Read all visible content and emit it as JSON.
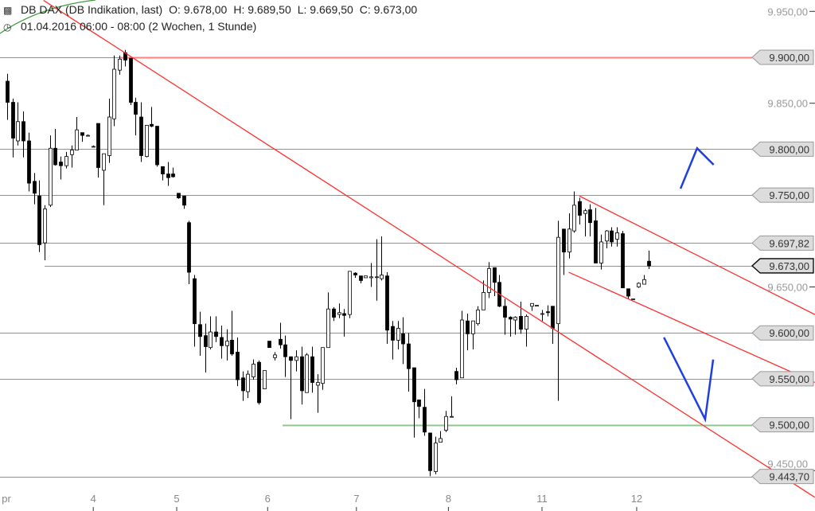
{
  "header": {
    "instrument": "DB DAX (DB Indikation, last)",
    "open": "O: 9.678,00",
    "high": "H: 9.689,50",
    "low": "L: 9.669,50",
    "close": "C: 9.673,00",
    "period": "01.04.2016 06:00 - 08:00 (2 Wochen, 1 Stunde)",
    "instrument_icon": "candlestick-icon",
    "period_icon": "clock-icon"
  },
  "chart_data": {
    "type": "candlestick",
    "title": "DB DAX (DB Indikation, last)",
    "interval": "1 Stunde",
    "ylim": [
      9421,
      9962
    ],
    "candles": [
      [
        9874,
        9882,
        9832,
        9851
      ],
      [
        9851,
        9855,
        9791,
        9812
      ],
      [
        9809,
        9851,
        9804,
        9830
      ],
      [
        9830,
        9841,
        9791,
        9809
      ],
      [
        9809,
        9818,
        9754,
        9763
      ],
      [
        9765,
        9774,
        9740,
        9752
      ],
      [
        9749,
        9766,
        9688,
        9696
      ],
      [
        9698,
        9739,
        9679,
        9735
      ],
      [
        9739,
        9815,
        9737,
        9801
      ],
      [
        9801,
        9822,
        9782,
        9783
      ],
      [
        9786,
        9792,
        9767,
        9782
      ],
      [
        9782,
        9797,
        9779,
        9792
      ],
      [
        9794,
        9804,
        9780,
        9799
      ],
      [
        9799,
        9835,
        9799,
        9821
      ],
      [
        9818,
        9818,
        9808,
        9815
      ],
      [
        9815,
        9816,
        9814,
        9815
      ],
      [
        9803,
        9804,
        9802,
        9803
      ],
      [
        9828,
        9828,
        9769,
        9780
      ],
      [
        9777,
        9795,
        9739,
        9795
      ],
      [
        9793,
        9855,
        9785,
        9835
      ],
      [
        9833,
        9902,
        9825,
        9887
      ],
      [
        9886,
        9902,
        9881,
        9898
      ],
      [
        9905,
        9908,
        9890,
        9897
      ],
      [
        9899,
        9899,
        9848,
        9851
      ],
      [
        9851,
        9856,
        9815,
        9838
      ],
      [
        9835,
        9851,
        9786,
        9793
      ],
      [
        9792,
        9826,
        9791,
        9826
      ],
      [
        9827,
        9846,
        9824,
        9825
      ],
      [
        9825,
        9825,
        9781,
        9783
      ],
      [
        9781,
        9781,
        9766,
        9773
      ],
      [
        9773,
        9786,
        9760,
        9769
      ],
      [
        9773,
        9780,
        9769,
        9770
      ],
      [
        9752,
        9752,
        9746,
        9747
      ],
      [
        9749,
        9749,
        9735,
        9739
      ],
      [
        9720,
        9722,
        9653,
        9666
      ],
      [
        9659,
        9663,
        9585,
        9610
      ],
      [
        9609,
        9623,
        9575,
        9596
      ],
      [
        9597,
        9610,
        9557,
        9585
      ],
      [
        9584,
        9618,
        9582,
        9601
      ],
      [
        9601,
        9618,
        9590,
        9596
      ],
      [
        9595,
        9608,
        9572,
        9586
      ],
      [
        9586,
        9604,
        9570,
        9591
      ],
      [
        9592,
        9624,
        9575,
        9577
      ],
      [
        9579,
        9595,
        9542,
        9549
      ],
      [
        9551,
        9558,
        9526,
        9537
      ],
      [
        9536,
        9559,
        9529,
        9555
      ],
      [
        9552,
        9571,
        9549,
        9566
      ],
      [
        9568,
        9570,
        9522,
        9524
      ],
      [
        9539,
        9559,
        9539,
        9559
      ],
      [
        9591,
        9591,
        9584,
        9584
      ],
      [
        9573,
        9579,
        9570,
        9576
      ],
      [
        9593,
        9611,
        9583,
        9587
      ],
      [
        9587,
        9597,
        9552,
        9574
      ],
      [
        9574,
        9574,
        9506,
        9570
      ],
      [
        9570,
        9581,
        9558,
        9574
      ],
      [
        9574,
        9585,
        9522,
        9537
      ],
      [
        9535,
        9578,
        9535,
        9576
      ],
      [
        9574,
        9585,
        9535,
        9546
      ],
      [
        9543,
        9555,
        9513,
        9546
      ],
      [
        9545,
        9584,
        9538,
        9584
      ],
      [
        9584,
        9644,
        9584,
        9626
      ],
      [
        9626,
        9628,
        9613,
        9617
      ],
      [
        9620,
        9632,
        9616,
        9622
      ],
      [
        9621,
        9626,
        9596,
        9619
      ],
      [
        9620,
        9667,
        9616,
        9667
      ],
      [
        9665,
        9666,
        9660,
        9663
      ],
      [
        9662,
        9662,
        9654,
        9657
      ],
      [
        9660,
        9662,
        9660,
        9662
      ],
      [
        9660,
        9676,
        9650,
        9661
      ],
      [
        9661,
        9702,
        9635,
        9661
      ],
      [
        9659,
        9705,
        9657,
        9663
      ],
      [
        9662,
        9666,
        9588,
        9603
      ],
      [
        9607,
        9613,
        9571,
        9592
      ],
      [
        9592,
        9613,
        9582,
        9605
      ],
      [
        9599,
        9617,
        9566,
        9588
      ],
      [
        9588,
        9600,
        9536,
        9561
      ],
      [
        9562,
        9562,
        9486,
        9525
      ],
      [
        9527,
        9527,
        9507,
        9520
      ],
      [
        9519,
        9539,
        9488,
        9492
      ],
      [
        9491,
        9491,
        9444,
        9450
      ],
      [
        9449,
        9487,
        9446,
        9480
      ],
      [
        9481,
        9493,
        9481,
        9485
      ],
      [
        9494,
        9515,
        9492,
        9509
      ],
      [
        9509,
        9531,
        9509,
        9509
      ],
      [
        9558,
        9562,
        9544,
        9549
      ],
      [
        9551,
        9624,
        9551,
        9614
      ],
      [
        9613,
        9621,
        9581,
        9599
      ],
      [
        9599,
        9613,
        9582,
        9613
      ],
      [
        9610,
        9629,
        9608,
        9625
      ],
      [
        9625,
        9657,
        9625,
        9644
      ],
      [
        9644,
        9677,
        9638,
        9670
      ],
      [
        9671,
        9671,
        9640,
        9655
      ],
      [
        9655,
        9663,
        9628,
        9629
      ],
      [
        9629,
        9637,
        9598,
        9617
      ],
      [
        9617,
        9618,
        9596,
        9615
      ],
      [
        9614,
        9618,
        9598,
        9617
      ],
      [
        9618,
        9634,
        9599,
        9604
      ],
      [
        9604,
        9620,
        9585,
        9618
      ],
      [
        9629,
        9632,
        9624,
        9632
      ],
      [
        9630,
        9630,
        9630,
        9630
      ],
      [
        9621,
        9625,
        9613,
        9621
      ],
      [
        9623,
        9630,
        9618,
        9622
      ],
      [
        9629,
        9629,
        9588,
        9605
      ],
      [
        9610,
        9722,
        9526,
        9704
      ],
      [
        9713,
        9713,
        9663,
        9688
      ],
      [
        9688,
        9730,
        9681,
        9713
      ],
      [
        9711,
        9754,
        9709,
        9739
      ],
      [
        9743,
        9747,
        9718,
        9728
      ],
      [
        9730,
        9735,
        9705,
        9733
      ],
      [
        9734,
        9740,
        9705,
        9720
      ],
      [
        9722,
        9736,
        9676,
        9676
      ],
      [
        9676,
        9707,
        9669,
        9699
      ],
      [
        9700,
        9712,
        9692,
        9711
      ],
      [
        9711,
        9715,
        9694,
        9699
      ],
      [
        9702,
        9715,
        9694,
        9709
      ],
      [
        9708,
        9711,
        9649,
        9649
      ],
      [
        9648,
        9648,
        9637,
        9640
      ],
      [
        9637,
        9637,
        9637,
        9637
      ],
      [
        9650,
        9655,
        9649,
        9654
      ],
      [
        9653,
        9663,
        9653,
        9658
      ],
      [
        9678,
        9689.5,
        9669.5,
        9673
      ]
    ],
    "x_ticks": [
      {
        "label": "pr",
        "index": -1
      },
      {
        "label": "4",
        "index": 16.1
      },
      {
        "label": "5",
        "index": 31.7
      },
      {
        "label": "6",
        "index": 48.7
      },
      {
        "label": "7",
        "index": 65.3
      },
      {
        "label": "8",
        "index": 82.5
      },
      {
        "label": "11",
        "index": 100
      },
      {
        "label": "12",
        "index": 117.7
      }
    ],
    "y_ticks": [
      {
        "price": 9950,
        "label": "9.950,00"
      },
      {
        "price": 9850,
        "label": "9.850,00"
      },
      {
        "price": 9650,
        "label": "9.650,00"
      },
      {
        "price": 9450,
        "label": "9.450,00"
      }
    ],
    "levels": [
      {
        "price": 9900,
        "label": "9.900,00",
        "color": "#ff8080",
        "from_index": 21
      },
      {
        "price": 9800,
        "label": "9.800,00",
        "color": "#909090",
        "from_index": -2
      },
      {
        "price": 9750,
        "label": "9.750,00",
        "color": "#909090",
        "from_index": -2
      },
      {
        "price": 9697.82,
        "label": "9.697,82",
        "color": "#909090",
        "from_index": -2
      },
      {
        "price": 9673,
        "label": "9.673,00",
        "color": "#909090",
        "from_index": 7,
        "current": true
      },
      {
        "price": 9600,
        "label": "9.600,00",
        "color": "#909090",
        "from_index": -2
      },
      {
        "price": 9550,
        "label": "9.550,00",
        "color": "#909090",
        "from_index": -2
      },
      {
        "price": 9500,
        "label": "9.500,00",
        "color": "#8fc48f",
        "from_index": 51.5
      },
      {
        "price": 9443.7,
        "label": "9.443,70",
        "color": "#909090",
        "from_index": -2
      }
    ],
    "trendlines": [
      {
        "name": "main-downtrend-line",
        "color": "#ff3030",
        "points": [
          [
            6.8,
            9962
          ],
          [
            151,
            9421
          ]
        ]
      },
      {
        "name": "channel-upper-line",
        "color": "#ff3030",
        "points": [
          [
            107,
            9749
          ],
          [
            151,
            9620
          ]
        ]
      },
      {
        "name": "channel-lower-line",
        "color": "#ff3030",
        "points": [
          [
            105,
            9666
          ],
          [
            151,
            9546
          ]
        ]
      },
      {
        "name": "blue-up-arrow-mark",
        "color": "#1f3fe0",
        "points": [
          [
            125.9,
            9757
          ],
          [
            129,
            9801
          ],
          [
            132.1,
            9783
          ]
        ]
      },
      {
        "name": "blue-v-mark",
        "color": "#1f3fe0",
        "points": [
          [
            122.8,
            9595
          ],
          [
            130.5,
            9506
          ],
          [
            132,
            9571
          ]
        ]
      }
    ],
    "colors": {
      "up_fill": "#ffffff",
      "down_fill": "#000000",
      "label_box": "#dcdcdc",
      "axis_text": "#999999"
    }
  }
}
